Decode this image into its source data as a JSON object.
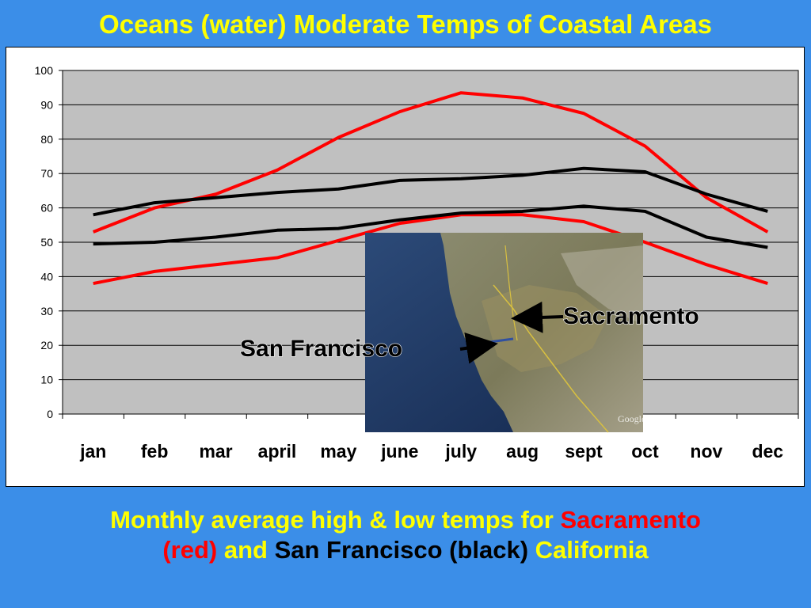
{
  "slide": {
    "title": "Oceans (water) Moderate Temps of Coastal Areas",
    "caption": {
      "line1_a": "Monthly average high & low temps for ",
      "line1_b": "Sacramento",
      "line2_a": "(red)",
      "line2_b": " and ",
      "line2_c": "San Francisco (black)",
      "line2_d": " California"
    }
  },
  "map_inset": {
    "label_sacramento": "Sacramento",
    "label_san_francisco": "San Francisco",
    "watermark": "Google"
  },
  "chart_data": {
    "type": "line",
    "categories": [
      "jan",
      "feb",
      "mar",
      "april",
      "may",
      "june",
      "july",
      "aug",
      "sept",
      "oct",
      "nov",
      "dec"
    ],
    "ylim": [
      0,
      100
    ],
    "yticks": [
      "0",
      "10",
      "20",
      "30",
      "40",
      "50",
      "60",
      "70",
      "80",
      "90",
      "100"
    ],
    "grid": true,
    "plot_background": "#c0c0c0",
    "series": [
      {
        "color": "#ff0000",
        "values": [
          53,
          60,
          64,
          71,
          80.5,
          88,
          93.5,
          92,
          87.5,
          78,
          63,
          53
        ]
      },
      {
        "color": "#ff0000",
        "values": [
          38,
          41.5,
          43.5,
          45.5,
          50.5,
          55.5,
          58,
          58,
          56,
          50,
          43.5,
          38
        ]
      },
      {
        "color": "#000000",
        "values": [
          58,
          61.5,
          63,
          64.5,
          65.5,
          68,
          68.5,
          69.5,
          71.5,
          70.5,
          64,
          59
        ]
      },
      {
        "color": "#000000",
        "values": [
          49.5,
          50,
          51.5,
          53.5,
          54,
          56.5,
          58.5,
          59,
          60.5,
          59,
          51.5,
          48.5
        ]
      }
    ]
  }
}
